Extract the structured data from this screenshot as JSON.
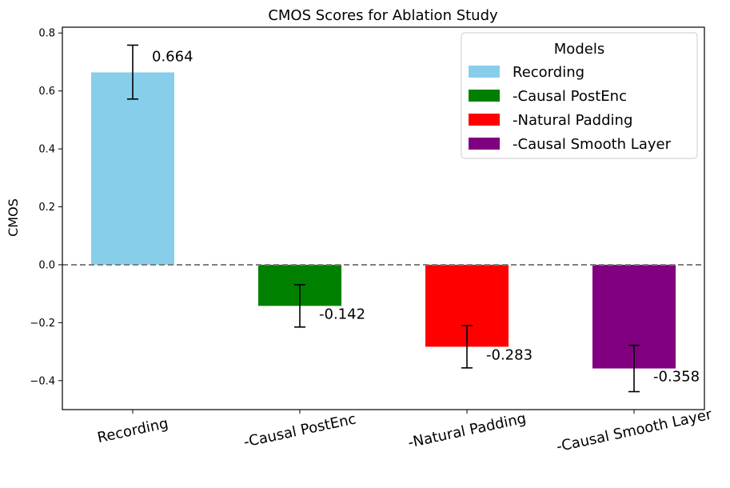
{
  "chart_data": {
    "type": "bar",
    "title": "CMOS Scores for Ablation Study",
    "xlabel": "",
    "ylabel": "CMOS",
    "ylim": [
      -0.5,
      0.82
    ],
    "yticks": [
      -0.4,
      -0.2,
      0.0,
      0.2,
      0.4,
      0.6,
      0.8
    ],
    "ytick_labels": [
      "−0.4",
      "−0.2",
      "0.0",
      "0.2",
      "0.4",
      "0.6",
      "0.8"
    ],
    "categories": [
      "Recording",
      "-Causal PostEnc",
      "-Natural Padding",
      "-Causal Smooth Layer"
    ],
    "values": [
      0.664,
      -0.142,
      -0.283,
      -0.358
    ],
    "value_labels": [
      "0.664",
      "-0.142",
      "-0.283",
      "-0.358"
    ],
    "error_low": [
      0.572,
      -0.215,
      -0.356,
      -0.438
    ],
    "error_high": [
      0.758,
      -0.069,
      -0.21,
      -0.278
    ],
    "colors": [
      "#87ceeb",
      "#008000",
      "#ff0000",
      "#800080"
    ],
    "baseline": 0.0,
    "baseline_style": "dashed gray",
    "legend": {
      "title": "Models",
      "position": "top-right",
      "entries": [
        "Recording",
        "-Causal PostEnc",
        "-Natural Padding",
        "-Causal Smooth Layer"
      ]
    }
  }
}
